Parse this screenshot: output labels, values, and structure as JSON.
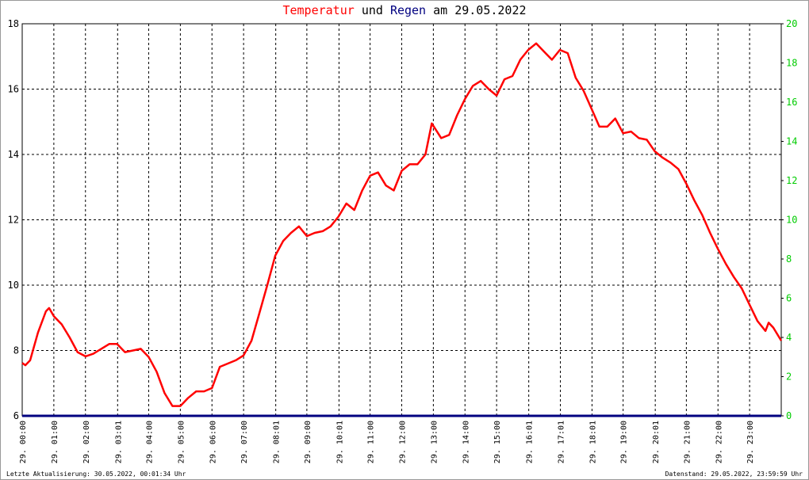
{
  "chart_data": {
    "type": "line",
    "title": [
      "Temperatur",
      "und",
      "Regen",
      "am 29.05.2022"
    ],
    "xlim": [
      0,
      24
    ],
    "xticks": [
      {
        "value": 0,
        "label": "29. 00:00"
      },
      {
        "value": 1,
        "label": "29. 01:00"
      },
      {
        "value": 2,
        "label": "29. 02:00"
      },
      {
        "value": 3.0167,
        "label": "29. 03:01"
      },
      {
        "value": 4,
        "label": "29. 04:00"
      },
      {
        "value": 5,
        "label": "29. 05:00"
      },
      {
        "value": 6,
        "label": "29. 06:00"
      },
      {
        "value": 7,
        "label": "29. 07:00"
      },
      {
        "value": 8.0167,
        "label": "29. 08:01"
      },
      {
        "value": 9,
        "label": "29. 09:00"
      },
      {
        "value": 10.0167,
        "label": "29. 10:01"
      },
      {
        "value": 11,
        "label": "29. 11:00"
      },
      {
        "value": 12,
        "label": "29. 12:00"
      },
      {
        "value": 13,
        "label": "29. 13:00"
      },
      {
        "value": 14,
        "label": "29. 14:00"
      },
      {
        "value": 15,
        "label": "29. 15:00"
      },
      {
        "value": 16.0167,
        "label": "29. 16:01"
      },
      {
        "value": 17.0167,
        "label": "29. 17:01"
      },
      {
        "value": 18.0167,
        "label": "29. 18:01"
      },
      {
        "value": 19,
        "label": "29. 19:00"
      },
      {
        "value": 20.0167,
        "label": "29. 20:01"
      },
      {
        "value": 21,
        "label": "29. 21:00"
      },
      {
        "value": 22,
        "label": "29. 22:00"
      },
      {
        "value": 23,
        "label": "29. 23:00"
      }
    ],
    "ylim": [
      6,
      18
    ],
    "yticks": [
      6,
      8,
      10,
      12,
      14,
      16,
      18
    ],
    "y2lim": [
      0,
      20
    ],
    "y2ticks": [
      0,
      2,
      4,
      6,
      8,
      10,
      12,
      14,
      16,
      18,
      20
    ],
    "grid": true,
    "x": [
      0,
      0.1,
      0.25,
      0.5,
      0.75,
      0.85,
      1,
      1.25,
      1.5,
      1.75,
      2,
      2.25,
      2.5,
      2.75,
      3,
      3.25,
      3.5,
      3.75,
      4,
      4.25,
      4.5,
      4.75,
      5,
      5.25,
      5.5,
      5.75,
      6,
      6.25,
      6.5,
      6.75,
      7,
      7.25,
      7.5,
      7.75,
      8,
      8.25,
      8.5,
      8.75,
      9,
      9.25,
      9.5,
      9.75,
      10,
      10.25,
      10.5,
      10.75,
      11,
      11.25,
      11.5,
      11.75,
      12,
      12.25,
      12.5,
      12.75,
      12.95,
      13.25,
      13.5,
      13.75,
      14,
      14.25,
      14.5,
      14.75,
      15,
      15.25,
      15.5,
      15.75,
      16,
      16.25,
      16.5,
      16.75,
      17,
      17.25,
      17.5,
      17.75,
      18,
      18.25,
      18.5,
      18.75,
      19,
      19.25,
      19.5,
      19.75,
      20,
      20.25,
      20.5,
      20.75,
      21,
      21.25,
      21.5,
      21.75,
      22,
      22.25,
      22.5,
      22.75,
      23,
      23.25,
      23.5,
      23.6,
      23.75,
      24
    ],
    "series": [
      {
        "name": "Temperatur",
        "color": "#ff0000",
        "values": [
          7.62,
          7.55,
          7.7,
          8.55,
          9.2,
          9.3,
          9.05,
          8.8,
          8.4,
          7.95,
          7.82,
          7.9,
          8.05,
          8.2,
          8.2,
          7.95,
          8.0,
          8.05,
          7.8,
          7.35,
          6.7,
          6.3,
          6.3,
          6.55,
          6.75,
          6.75,
          6.85,
          7.5,
          7.6,
          7.7,
          7.85,
          8.3,
          9.15,
          10.0,
          10.9,
          11.35,
          11.6,
          11.8,
          11.5,
          11.6,
          11.65,
          11.8,
          12.1,
          12.5,
          12.3,
          12.9,
          13.35,
          13.45,
          13.05,
          12.9,
          13.5,
          13.7,
          13.7,
          14.0,
          14.95,
          14.5,
          14.6,
          15.2,
          15.7,
          16.1,
          16.25,
          16.0,
          15.8,
          16.3,
          16.4,
          16.9,
          17.2,
          17.4,
          17.15,
          16.9,
          17.2,
          17.1,
          16.35,
          15.95,
          15.4,
          14.85,
          14.85,
          15.1,
          14.65,
          14.7,
          14.5,
          14.45,
          14.1,
          13.9,
          13.75,
          13.55,
          13.1,
          12.6,
          12.15,
          11.6,
          11.1,
          10.65,
          10.25,
          9.9,
          9.4,
          8.9,
          8.6,
          8.85,
          8.7,
          8.3
        ]
      },
      {
        "name": "Regen",
        "color": "#000080",
        "axis": "y2",
        "x": [
          0,
          24
        ],
        "values": [
          0,
          0
        ]
      }
    ],
    "footer_left": "Letzte Aktualisierung: 30.05.2022, 00:01:34 Uhr",
    "footer_right": "Datenstand: 29.05.2022, 23:59:59 Uhr"
  }
}
